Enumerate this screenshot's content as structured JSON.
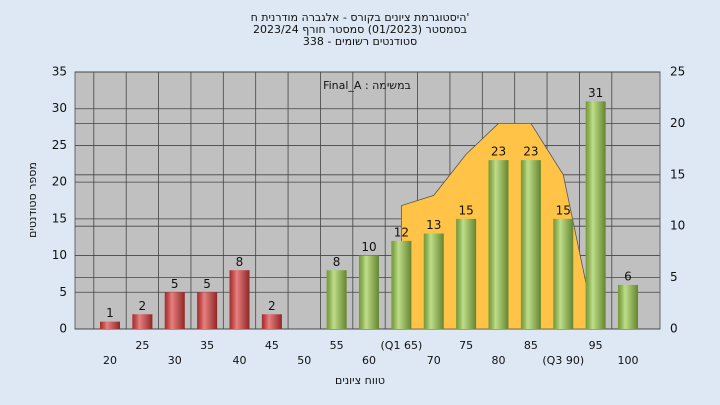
{
  "chart_data": {
    "type": "bar",
    "title_lines": [
      "היסטוגרמת ציונים בקורס - אלגברה מודרנית ח'",
      "בסמסטר  (01/2023)  סמסטר חורף  2023/24",
      "סטודנטים רשומים - 338"
    ],
    "annotation": "Final_A : במשימה",
    "x_label": "טווח ציונים",
    "y_label": "מספר סטודנטים",
    "categories": [
      "20",
      "25",
      "30",
      "35",
      "40",
      "45",
      "50",
      "55",
      "60",
      "(Q1 65)",
      "70",
      "75",
      "80",
      "85",
      "(Q3 90)",
      "95",
      "100"
    ],
    "values": [
      1,
      2,
      5,
      5,
      8,
      2,
      null,
      8,
      10,
      12,
      13,
      15,
      23,
      23,
      15,
      31,
      6
    ],
    "colors": [
      "#dd3b3b",
      "#dd3b3b",
      "#dd3b3b",
      "#dd3b3b",
      "#dd3b3b",
      "#dd3b3b",
      "#dd3b3b",
      "#9ccc4a",
      "#9ccc4a",
      "#9ccc4a",
      "#9ccc4a",
      "#9ccc4a",
      "#9ccc4a",
      "#9ccc4a",
      "#9ccc4a",
      "#9ccc4a",
      "#9ccc4a"
    ],
    "area": {
      "axis": "y2",
      "color": "#ffc447",
      "values": [
        null,
        null,
        null,
        null,
        null,
        null,
        null,
        null,
        null,
        12,
        13,
        17,
        20,
        20,
        15,
        0,
        null
      ]
    },
    "ylim": [
      0,
      35
    ],
    "yticks": [
      0,
      5,
      10,
      15,
      20,
      25,
      30,
      35
    ],
    "y2lim": [
      0,
      25
    ],
    "y2ticks": [
      0,
      5,
      10,
      15,
      20,
      25
    ],
    "grid": true
  }
}
